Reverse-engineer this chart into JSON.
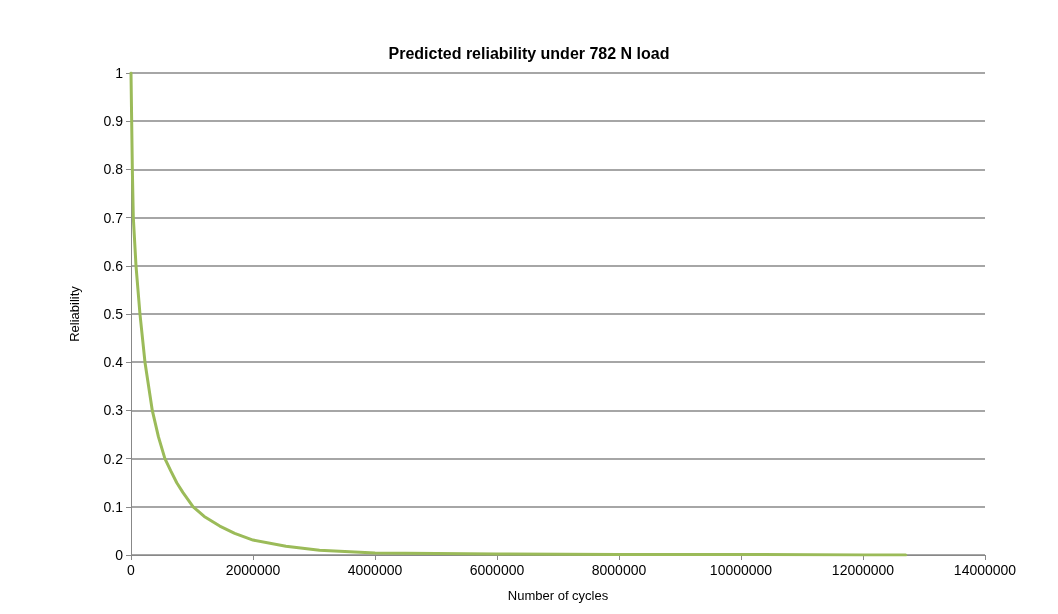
{
  "chart_data": {
    "type": "line",
    "title": "Predicted reliability under 782 N load",
    "xlabel": "Number of cycles",
    "ylabel": "Reliability",
    "x": [
      0,
      11000,
      22000,
      38000,
      82000,
      147000,
      229000,
      349000,
      450000,
      556000,
      650000,
      750000,
      850000,
      1019000,
      1200000,
      1455000,
      1700000,
      2000000,
      2540000,
      3090000,
      4000000,
      5000000,
      6000000,
      8000000,
      10000000,
      12000000,
      12700000
    ],
    "series": [
      {
        "color": "#9bbb59",
        "values": [
          1,
          0.9,
          0.8,
          0.7,
          0.6,
          0.5,
          0.4,
          0.3,
          0.245,
          0.2,
          0.175,
          0.15,
          0.13,
          0.1,
          0.08,
          0.06,
          0.045,
          0.031,
          0.018,
          0.01,
          0.004,
          0.003,
          0.002,
          0.001,
          0.001,
          0,
          0
        ]
      }
    ],
    "xlim": [
      0,
      14000000
    ],
    "xticks": [
      0,
      2000000,
      4000000,
      6000000,
      8000000,
      10000000,
      12000000,
      14000000
    ],
    "ylim": [
      0,
      1
    ],
    "yticks": [
      0,
      0.1,
      0.2,
      0.3,
      0.4,
      0.5,
      0.6,
      0.7,
      0.8,
      0.9,
      1
    ],
    "grid": "y",
    "marker": "none",
    "line_style": "solid"
  }
}
